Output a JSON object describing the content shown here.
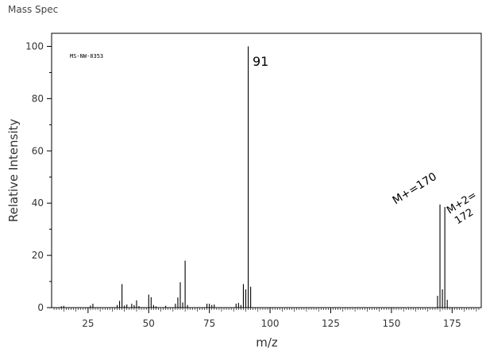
{
  "page": {
    "title": "Mass Spec"
  },
  "chart_data": {
    "type": "bar",
    "xlabel": "m/z",
    "ylabel": "Relative Intensity",
    "xlim": [
      10,
      187
    ],
    "ylim": [
      0,
      105
    ],
    "x_ticks": [
      25,
      50,
      75,
      100,
      125,
      150,
      175
    ],
    "y_ticks": [
      0,
      20,
      40,
      60,
      80,
      100
    ],
    "grid": false,
    "spectrum_id": "MS-NW-8353",
    "annotations": {
      "peak_label": "91",
      "mplus_label": "M+=170",
      "mplus2_line1": "M+2=",
      "mplus2_line2": "172"
    },
    "peaks": [
      {
        "mz": 14,
        "intensity": 0.5
      },
      {
        "mz": 15,
        "intensity": 0.7
      },
      {
        "mz": 26,
        "intensity": 0.8
      },
      {
        "mz": 27,
        "intensity": 1.5
      },
      {
        "mz": 37,
        "intensity": 1.0
      },
      {
        "mz": 38,
        "intensity": 2.6
      },
      {
        "mz": 39,
        "intensity": 9.0
      },
      {
        "mz": 40,
        "intensity": 0.8
      },
      {
        "mz": 41,
        "intensity": 1.2
      },
      {
        "mz": 43,
        "intensity": 1.5
      },
      {
        "mz": 44,
        "intensity": 1.0
      },
      {
        "mz": 45,
        "intensity": 2.8
      },
      {
        "mz": 46,
        "intensity": 0.6
      },
      {
        "mz": 50,
        "intensity": 5.0
      },
      {
        "mz": 51,
        "intensity": 4.0
      },
      {
        "mz": 52,
        "intensity": 1.0
      },
      {
        "mz": 53,
        "intensity": 0.5
      },
      {
        "mz": 57,
        "intensity": 0.7
      },
      {
        "mz": 61,
        "intensity": 1.5
      },
      {
        "mz": 62,
        "intensity": 3.9
      },
      {
        "mz": 63,
        "intensity": 9.7
      },
      {
        "mz": 64,
        "intensity": 2.0
      },
      {
        "mz": 65,
        "intensity": 18.0
      },
      {
        "mz": 66,
        "intensity": 1.0
      },
      {
        "mz": 74,
        "intensity": 1.5
      },
      {
        "mz": 75,
        "intensity": 1.5
      },
      {
        "mz": 76,
        "intensity": 1.0
      },
      {
        "mz": 77,
        "intensity": 1.2
      },
      {
        "mz": 86,
        "intensity": 1.5
      },
      {
        "mz": 87,
        "intensity": 1.8
      },
      {
        "mz": 88,
        "intensity": 1.0
      },
      {
        "mz": 89,
        "intensity": 9.0
      },
      {
        "mz": 90,
        "intensity": 7.0
      },
      {
        "mz": 91,
        "intensity": 100.0
      },
      {
        "mz": 92,
        "intensity": 8.0
      },
      {
        "mz": 169,
        "intensity": 4.5
      },
      {
        "mz": 170,
        "intensity": 39.5
      },
      {
        "mz": 171,
        "intensity": 7.0
      },
      {
        "mz": 172,
        "intensity": 38.5
      },
      {
        "mz": 173,
        "intensity": 3.0
      }
    ]
  }
}
